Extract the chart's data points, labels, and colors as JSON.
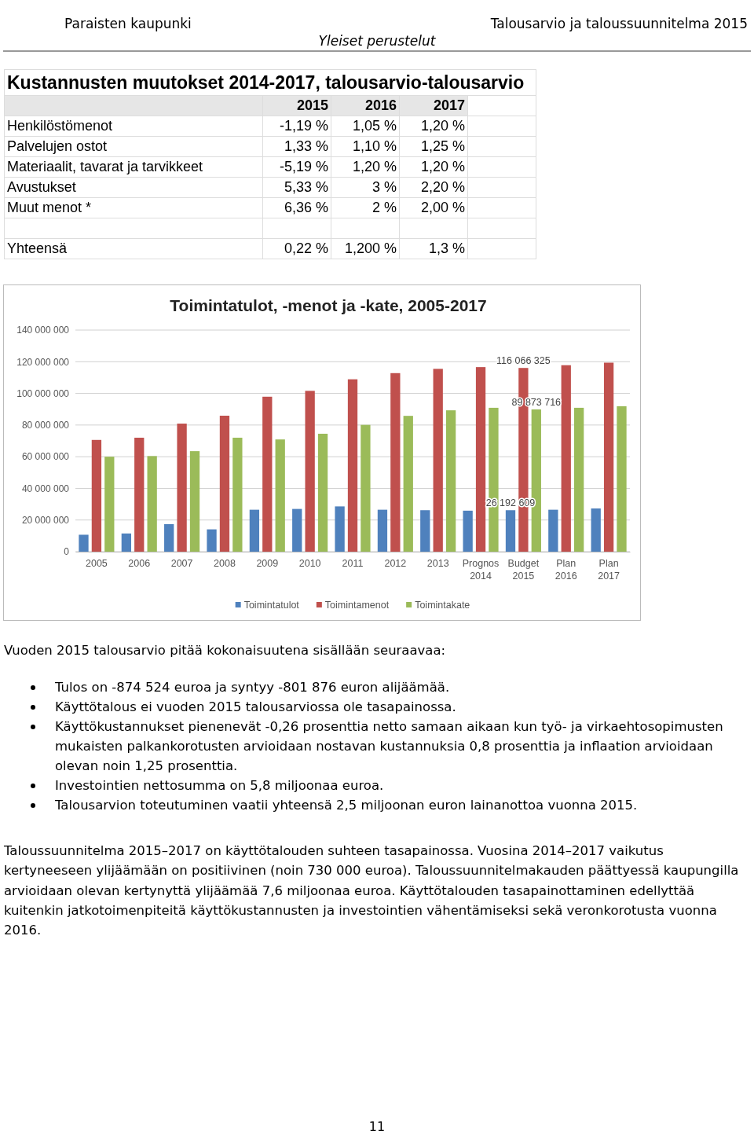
{
  "chart_data": [
    {
      "type": "other",
      "annotations": [
        "Paraisten kaupunki",
        "Talousarvio ja taloussuunnitelma 2015",
        "Yleiset perustelut"
      ]
    },
    {
      "type": "other",
      "title": "Kustannusten muutokset 2014-2017, talousarvio-talousarvio",
      "categories": [
        "2015",
        "2016",
        "2017"
      ],
      "y_categories": [
        "Henkilöstömenot",
        "Palvelujen ostot",
        "Materiaalit, tavarat ja tarvikkeet",
        "Avustukset",
        "Muut menot *",
        null,
        "Yhteensä"
      ],
      "cell_labels": [
        [
          "-1,19 %",
          "1,05 %",
          "1,20 %"
        ],
        [
          "1,33 %",
          "1,10 %",
          "1,25 %"
        ],
        [
          "-5,19 %",
          "1,20 %",
          "1,20 %"
        ],
        [
          "5,33 %",
          "3 %",
          "2,20 %"
        ],
        [
          "6,36 %",
          "2 %",
          "2,00 %"
        ],
        [
          null,
          null,
          null
        ],
        [
          "0,22 %",
          "1,200 %",
          "1,3 %"
        ]
      ]
    },
    {
      "type": "bar",
      "title": "Toimintatulot, -menot ja -kate, 2005-2017",
      "categories": [
        "2005",
        "2006",
        "2007",
        "2008",
        "2009",
        "2010",
        "2011",
        "2012",
        "2013",
        "Prognos 2014",
        "Budget 2015",
        "Plan 2016",
        "Plan 2017"
      ],
      "series": [
        {
          "name": "Toimintatulot",
          "color": "#4f81bd",
          "values": [
            10700000,
            11500000,
            17400000,
            14100000,
            26500000,
            27000000,
            28600000,
            26500000,
            26200000,
            25900000,
            26192609,
            26500000,
            27300000
          ],
          "value_labels": [
            null,
            null,
            null,
            null,
            null,
            null,
            null,
            null,
            null,
            null,
            "26 192 609",
            null,
            null
          ]
        },
        {
          "name": "Toimintamenot",
          "color": "#c0504d",
          "values": [
            70600000,
            72000000,
            80900000,
            85900000,
            97900000,
            101600000,
            108900000,
            112800000,
            115500000,
            116600000,
            116066325,
            117800000,
            119400000
          ],
          "value_labels": [
            null,
            null,
            null,
            null,
            null,
            null,
            null,
            null,
            null,
            null,
            "116 066 325",
            null,
            null
          ]
        },
        {
          "name": "Toimintakate",
          "color": "#9bbb59",
          "values": [
            60000000,
            60400000,
            63500000,
            72000000,
            70900000,
            74500000,
            80100000,
            85800000,
            89300000,
            90900000,
            89873716,
            90900000,
            91900000
          ],
          "value_labels": [
            null,
            null,
            null,
            null,
            null,
            null,
            null,
            null,
            null,
            null,
            "89 873 716",
            null,
            null
          ]
        }
      ],
      "ylim": [
        0,
        140000000
      ],
      "yticks": [
        {
          "value": 0,
          "label": "0"
        },
        {
          "value": 20000000,
          "label": "20 000 000"
        },
        {
          "value": 40000000,
          "label": "40 000 000"
        },
        {
          "value": 60000000,
          "label": "60 000 000"
        },
        {
          "value": 80000000,
          "label": "80 000 000"
        },
        {
          "value": 100000000,
          "label": "100 000 000"
        },
        {
          "value": 120000000,
          "label": "120 000 000"
        },
        {
          "value": 140000000,
          "label": "140 000 000"
        }
      ],
      "grid": "y",
      "legend": "bottom"
    },
    {
      "type": "other",
      "subtitle": "Vuoden 2015 talousarvio pitää kokonaisuutena sisällään seuraavaa:",
      "annotations": [
        "Tulos on -874 524 euroa ja syntyy -801 876 euron alijäämää.",
        "Käyttötalous ei vuoden 2015 talousarviossa ole tasapainossa.",
        "Käyttökustannukset pienenevät -0,26 prosenttia netto samaan aikaan kun työ- ja virkaehtosopimusten mukaisten palkankorotusten arvioidaan nostavan kustannuksia 0,8 prosenttia ja inflaation arvioidaan olevan noin 1,25 prosenttia.",
        "Investointien nettosumma on 5,8 miljoonaa euroa.",
        "Talousarvion toteutuminen vaatii yhteensä 2,5 miljoonan euron lainanottoa vuonna 2015."
      ]
    },
    {
      "type": "other",
      "annotations": [
        "Taloussuunnitelma 2015–2017 on käyttötalouden suhteen tasapainossa. Vuosina 2014–2017 vaikutus kertyneeseen ylijäämään on positiivinen (noin 730 000 euroa). Taloussuunnitelmakauden päättyessä kaupungilla arvioidaan olevan kertynyttä ylijäämää 7,6 miljoonaa euroa. Käyttötalouden tasapainottaminen edellyttää kuitenkin jatkotoimenpiteitä käyttökustannusten ja investointien vähentämiseksi sekä veronkorotusta vuonna 2016.",
        "11"
      ]
    }
  ]
}
